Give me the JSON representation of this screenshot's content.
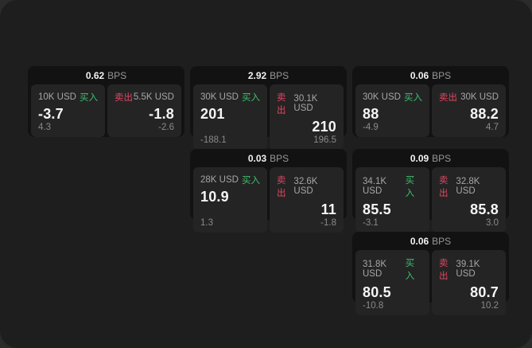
{
  "labels": {
    "bps": "BPS",
    "buy": "买入",
    "sell": "卖出"
  },
  "colors": {
    "buy_green": "#3fbf6e",
    "sell_red": "#e04762",
    "window_bg": "#1e1e1e",
    "card_bg": "#121212",
    "panel_bg": "#242424"
  },
  "cards": [
    {
      "bps": "0.62",
      "buy": {
        "size": "10K USD",
        "value": "-3.7",
        "delta": "4.3"
      },
      "sell": {
        "size": "5.5K USD",
        "value": "-1.8",
        "delta": "-2.6"
      }
    },
    {
      "bps": "2.92",
      "buy": {
        "size": "30K USD",
        "value": "201",
        "delta": "-188.1"
      },
      "sell": {
        "size": "30.1K USD",
        "value": "210",
        "delta": "196.5"
      }
    },
    {
      "bps": "0.06",
      "buy": {
        "size": "30K USD",
        "value": "88",
        "delta": "-4.9"
      },
      "sell": {
        "size": "30K USD",
        "value": "88.2",
        "delta": "4.7"
      }
    },
    {
      "bps": "0.03",
      "buy": {
        "size": "28K USD",
        "value": "10.9",
        "delta": "1.3"
      },
      "sell": {
        "size": "32.6K USD",
        "value": "11",
        "delta": "-1.8"
      }
    },
    {
      "bps": "0.09",
      "buy": {
        "size": "34.1K USD",
        "value": "85.5",
        "delta": "-3.1"
      },
      "sell": {
        "size": "32.8K USD",
        "value": "85.8",
        "delta": "3.0"
      }
    },
    {
      "bps": "0.06",
      "buy": {
        "size": "31.8K USD",
        "value": "80.5",
        "delta": "-10.8"
      },
      "sell": {
        "size": "39.1K USD",
        "value": "80.7",
        "delta": "10.2"
      }
    }
  ]
}
